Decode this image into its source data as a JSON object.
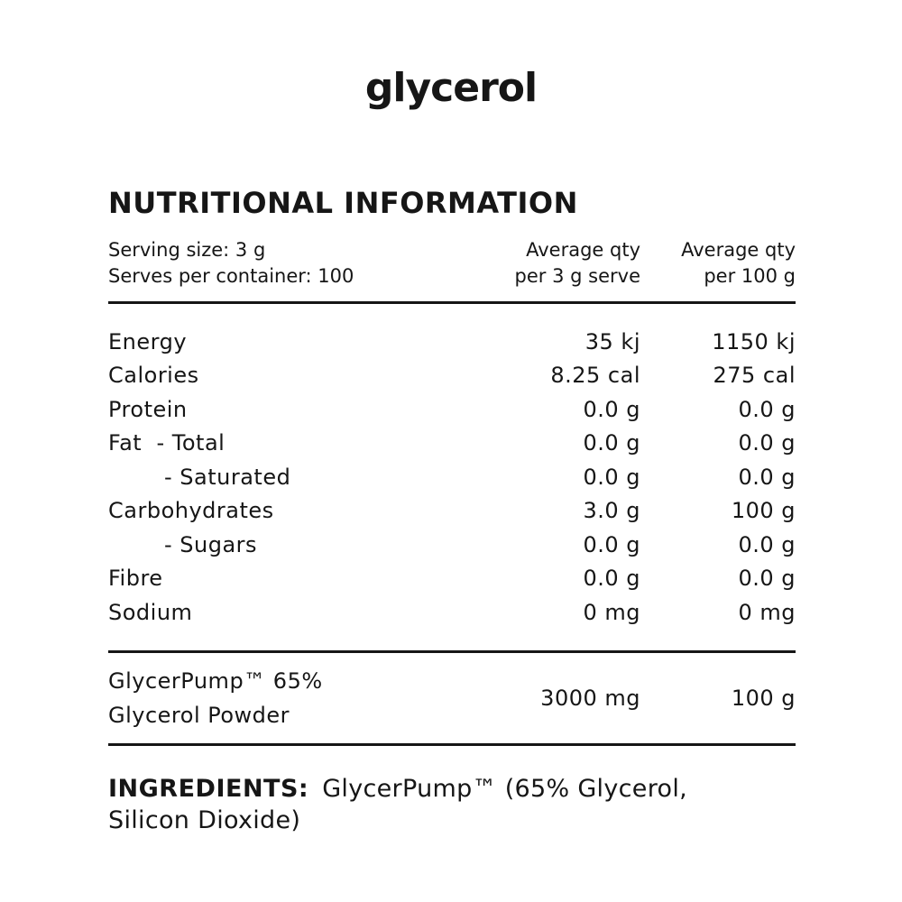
{
  "brand": {
    "logo": "glycerol"
  },
  "panel": {
    "title": "NUTRITIONAL INFORMATION",
    "serving": {
      "serving_size": "Serving size: 3 g",
      "serves_per_container": "Serves per container: 100"
    },
    "columns": {
      "col1_line1": "Average qty",
      "col1_line2": "per 3 g serve",
      "col2_line1": "Average qty",
      "col2_line2": "per 100 g"
    },
    "rows": [
      {
        "label": "Energy",
        "per_serve": "35 kj",
        "per_100g": "1150 kj"
      },
      {
        "label": "Calories",
        "per_serve": "8.25 cal",
        "per_100g": "275 cal"
      },
      {
        "label": "Protein",
        "per_serve": "0.0 g",
        "per_100g": "0.0 g"
      },
      {
        "label": "Fat  - Total",
        "per_serve": "0.0 g",
        "per_100g": "0.0 g"
      },
      {
        "label": "- Saturated",
        "per_serve": "0.0 g",
        "per_100g": "0.0 g"
      },
      {
        "label": "Carbohydrates",
        "per_serve": "3.0 g",
        "per_100g": "100 g"
      },
      {
        "label": "- Sugars",
        "per_serve": "0.0 g",
        "per_100g": "0.0 g"
      },
      {
        "label": "Fibre",
        "per_serve": "0.0 g",
        "per_100g": "0.0 g"
      },
      {
        "label": "Sodium",
        "per_serve": "0 mg",
        "per_100g": "0 mg"
      }
    ],
    "highlight_row": {
      "label_line1": "GlycerPump™ 65%",
      "label_line2": "Glycerol Powder",
      "per_serve": "3000 mg",
      "per_100g": "100 g"
    },
    "ingredients": {
      "label": "INGREDIENTS:",
      "line1": "GlycerPump™ (65% Glycerol,",
      "line2": "Silicon Dioxide)"
    }
  },
  "colors": {
    "background": "#ffffff",
    "text": "#161616",
    "rule": "#161616"
  }
}
